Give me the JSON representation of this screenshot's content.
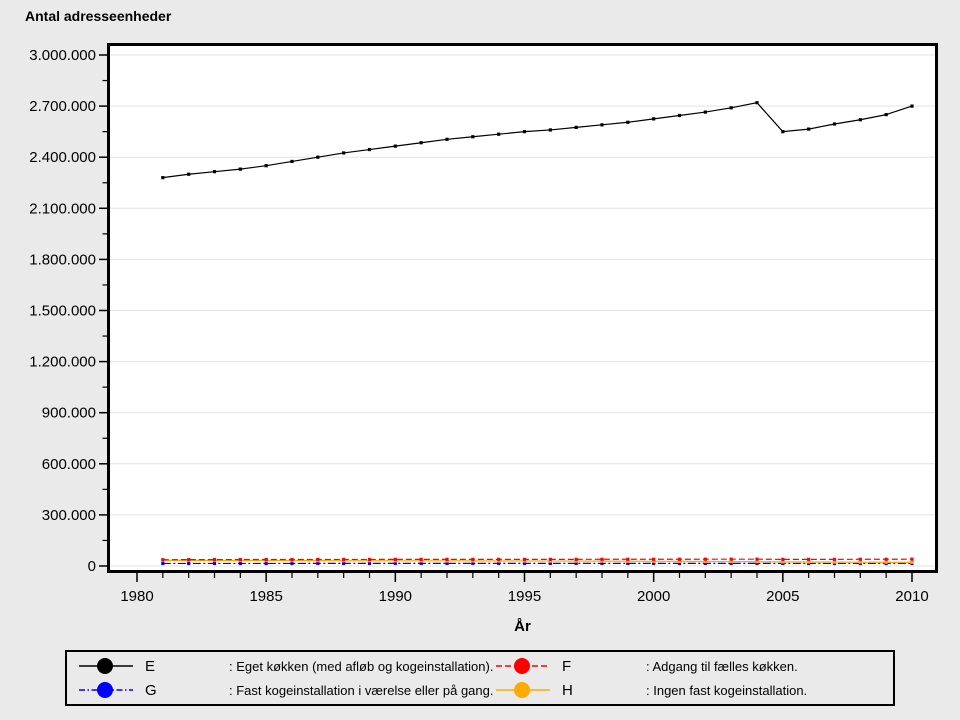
{
  "page": {
    "background": "#eaeaea"
  },
  "chart": {
    "title": "Antal adresseenheder",
    "xlabel": "År"
  },
  "chart_data": {
    "type": "line",
    "title": "Antal adresseenheder",
    "xlabel": "År",
    "xlim": [
      1980,
      2010.9
    ],
    "ylim": [
      0,
      3000000
    ],
    "grid": true,
    "legend_position": "bottom",
    "x_major_ticks": [
      1980,
      1985,
      1990,
      1995,
      2000,
      2005,
      2010
    ],
    "x_tick_labels": [
      "1980",
      "1985",
      "1990",
      "1995",
      "2000",
      "2005",
      "2010"
    ],
    "y_major_ticks": [
      0,
      300000,
      600000,
      900000,
      1200000,
      1500000,
      1800000,
      2100000,
      2400000,
      2700000,
      3000000
    ],
    "y_tick_labels": [
      "0",
      "300.000",
      "600.000",
      "900.000",
      "1.200.000",
      "1.500.000",
      "1.800.000",
      "2.100.000",
      "2.400.000",
      "2.700.000",
      "3.000.000"
    ],
    "x": [
      1981,
      1982,
      1983,
      1984,
      1985,
      1986,
      1987,
      1988,
      1989,
      1990,
      1991,
      1992,
      1993,
      1994,
      1995,
      1996,
      1997,
      1998,
      1999,
      2000,
      2001,
      2002,
      2003,
      2004,
      2005,
      2006,
      2007,
      2008,
      2009,
      2010
    ],
    "series": [
      {
        "name": "E",
        "label": ": Eget køkken (med afløb og kogeinstallation).",
        "color": "#000000",
        "style": "solid",
        "values": [
          2280000,
          2300000,
          2315000,
          2330000,
          2350000,
          2375000,
          2400000,
          2425000,
          2445000,
          2465000,
          2485000,
          2505000,
          2520000,
          2535000,
          2550000,
          2560000,
          2575000,
          2590000,
          2605000,
          2625000,
          2645000,
          2665000,
          2690000,
          2720000,
          2550000,
          2565000,
          2595000,
          2620000,
          2650000,
          2700000
        ]
      },
      {
        "name": "F",
        "label": ": Adgang til fælles køkken.",
        "color": "#ff0000",
        "style": "dashed",
        "values": [
          37000,
          37500,
          37500,
          38000,
          38000,
          38000,
          38500,
          38500,
          38500,
          39000,
          39000,
          39000,
          39000,
          39000,
          39000,
          39000,
          39000,
          39500,
          39500,
          39500,
          39500,
          40000,
          40000,
          40000,
          39000,
          39000,
          39000,
          39500,
          39500,
          40000
        ]
      },
      {
        "name": "G",
        "label": ": Fast kogeinstallation i værelse eller på gang.",
        "color": "#0000ff",
        "style": "dashdot",
        "values": [
          15000,
          15000,
          15000,
          15000,
          15000,
          15000,
          15500,
          15500,
          15500,
          15500,
          15500,
          15500,
          15500,
          15500,
          15500,
          15500,
          15500,
          15500,
          15500,
          15500,
          15500,
          15500,
          15500,
          15500,
          15000,
          15000,
          15000,
          15000,
          15000,
          15000
        ]
      },
      {
        "name": "H",
        "label": ": Ingen fast kogeinstallation.",
        "color": "#ffaa00",
        "style": "solid",
        "values": [
          33000,
          33000,
          32500,
          32500,
          32000,
          32000,
          31500,
          31000,
          31000,
          30500,
          30500,
          30000,
          30000,
          29500,
          29500,
          29000,
          28500,
          28500,
          28000,
          27500,
          27000,
          26500,
          26000,
          25500,
          24000,
          23500,
          23000,
          22500,
          22000,
          21500
        ]
      }
    ]
  }
}
